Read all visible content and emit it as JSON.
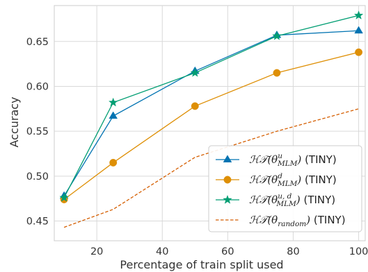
{
  "chart_data": {
    "type": "line",
    "xlabel": "Percentage of train split used",
    "ylabel": "Accuracy",
    "xlim": [
      7,
      102
    ],
    "ylim": [
      0.428,
      0.69
    ],
    "x_ticks": [
      20,
      40,
      60,
      80,
      100
    ],
    "y_ticks": [
      0.45,
      0.5,
      0.55,
      0.6,
      0.65
    ],
    "x_tick_labels": [
      "20",
      "40",
      "60",
      "80",
      "100"
    ],
    "y_tick_labels": [
      "0.45",
      "0.50",
      "0.55",
      "0.60",
      "0.65"
    ],
    "grid": true,
    "legend_position": "lower-right",
    "x": [
      10,
      25,
      50,
      75,
      100
    ],
    "series": [
      {
        "label_parts": {
          "sup": "u",
          "suffix": " (TINY)"
        },
        "color": "#0173b2",
        "marker": "triangle",
        "line_style": "solid",
        "values": [
          0.478,
          0.567,
          0.617,
          0.657,
          0.662
        ]
      },
      {
        "label_parts": {
          "sup": "d",
          "suffix": " (TINY)"
        },
        "color": "#de8f05",
        "marker": "circle",
        "line_style": "solid",
        "values": [
          0.474,
          0.515,
          0.578,
          0.615,
          0.638
        ]
      },
      {
        "label_parts": {
          "sup": "u, d",
          "suffix": " (TINY)"
        },
        "color": "#029e73",
        "marker": "star",
        "line_style": "solid",
        "values": [
          0.476,
          0.582,
          0.615,
          0.656,
          0.679
        ]
      },
      {
        "label_parts": {
          "sup": "",
          "suffix": " (TINY)"
        },
        "color": "#d55e00",
        "marker": "none",
        "line_style": "dashed",
        "values": [
          0.443,
          0.463,
          0.521,
          0.55,
          0.575
        ]
      }
    ]
  }
}
